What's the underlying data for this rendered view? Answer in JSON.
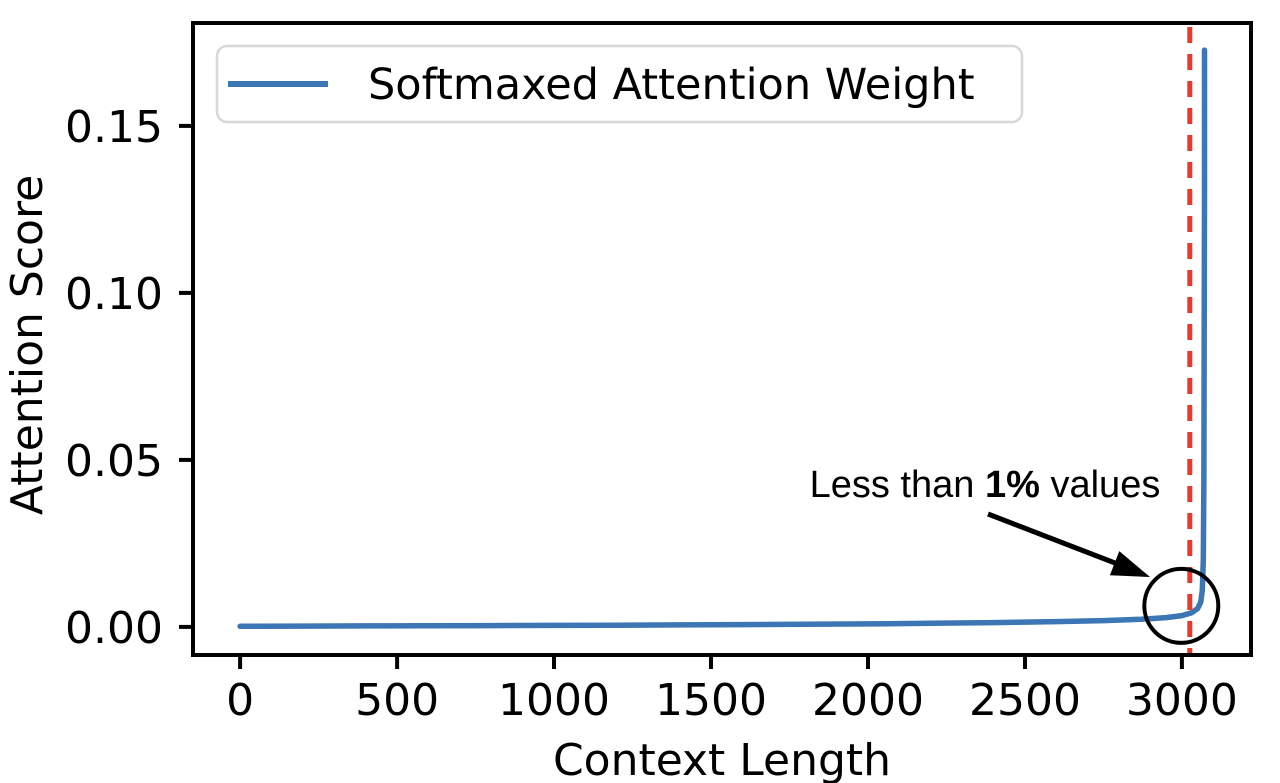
{
  "chart_data": {
    "type": "line",
    "title": "",
    "xlabel": "Context Length",
    "ylabel": "Attention Score",
    "xlim": [
      -150,
      3220
    ],
    "ylim": [
      -0.0084,
      0.1808
    ],
    "x_ticks": [
      0,
      500,
      1000,
      1500,
      2000,
      2500,
      3000
    ],
    "x_tick_labels": [
      "0",
      "500",
      "1000",
      "1500",
      "2000",
      "2500",
      "3000"
    ],
    "y_ticks": [
      0,
      0.05,
      0.1,
      0.15
    ],
    "y_tick_labels": [
      "0.00",
      "0.05",
      "0.10",
      "0.15"
    ],
    "grid": false,
    "legend": {
      "position": "upper left",
      "entries": [
        {
          "label": "Softmaxed Attention Weight",
          "color": "#3c76b5"
        }
      ]
    },
    "series": [
      {
        "name": "Softmaxed Attention Weight",
        "color": "#3c76b5",
        "points": [
          [
            0,
            0.0002
          ],
          [
            200,
            0.00025
          ],
          [
            400,
            0.0003
          ],
          [
            600,
            0.00035
          ],
          [
            800,
            0.0004
          ],
          [
            1000,
            0.00045
          ],
          [
            1200,
            0.0005
          ],
          [
            1400,
            0.0006
          ],
          [
            1600,
            0.0007
          ],
          [
            1800,
            0.0008
          ],
          [
            2000,
            0.0009
          ],
          [
            2200,
            0.0011
          ],
          [
            2400,
            0.0013
          ],
          [
            2600,
            0.0016
          ],
          [
            2750,
            0.0019
          ],
          [
            2870,
            0.0023
          ],
          [
            2950,
            0.0028
          ],
          [
            3000,
            0.0034
          ],
          [
            3030,
            0.0042
          ],
          [
            3050,
            0.0055
          ],
          [
            3060,
            0.0075
          ],
          [
            3065,
            0.011
          ],
          [
            3068,
            0.02
          ],
          [
            3070,
            0.045
          ],
          [
            3071,
            0.09
          ],
          [
            3072,
            0.13
          ],
          [
            3072,
            0.1727
          ]
        ]
      }
    ],
    "vline": {
      "x": 3025,
      "color": "#e73a2e",
      "linestyle": "dashed"
    },
    "annotation": {
      "full_text": "Less than 1% values",
      "parts": [
        "Less than ",
        "1%",
        " values"
      ],
      "circle": {
        "x": 2998,
        "y": 0.0063
      }
    },
    "colors": {
      "line": "#3c76b5",
      "vline": "#e73a2e",
      "text": "#000000",
      "spine": "#000000",
      "legend_border": "#d8d8d8"
    }
  }
}
